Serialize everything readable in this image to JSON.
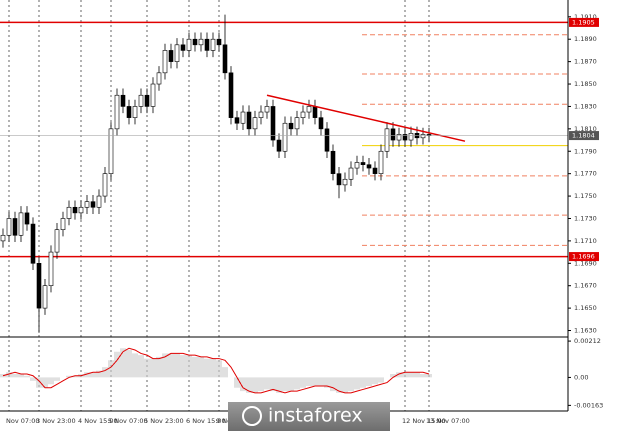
{
  "chart_data": {
    "type": "candlestick",
    "categories": [
      null,
      "Nov 07:00",
      null,
      null,
      null,
      null,
      "3 Nov 23:00",
      null,
      null,
      null,
      null,
      null,
      null,
      "4 Nov 15:00",
      null,
      null,
      null,
      null,
      "5 Nov 07:00",
      null,
      null,
      null,
      null,
      null,
      "5 Nov 23:00",
      null,
      null,
      null,
      null,
      null,
      null,
      "6 Nov 15:00",
      null,
      null,
      null,
      null,
      "9 Nov 07:00",
      null,
      null,
      null,
      null,
      null,
      null,
      null,
      null,
      null,
      null,
      null,
      null,
      null,
      null,
      null,
      null,
      null,
      null,
      null,
      null,
      null,
      null,
      null,
      null,
      null,
      null,
      null,
      null,
      null,
      null,
      "12 Nov 15:00",
      null,
      null,
      null,
      "13 Nov 07:00"
    ],
    "open": [
      1.171,
      1.1715,
      1.173,
      1.1715,
      1.1735,
      1.1725,
      1.169,
      1.165,
      1.167,
      1.17,
      1.172,
      1.173,
      1.174,
      1.1735,
      1.174,
      1.1745,
      1.174,
      1.175,
      1.177,
      1.181,
      1.184,
      1.183,
      1.182,
      1.183,
      1.184,
      1.183,
      1.185,
      1.186,
      1.188,
      1.187,
      1.1885,
      1.188,
      1.189,
      1.1885,
      1.189,
      1.188,
      1.189,
      1.1885,
      1.186,
      1.182,
      1.1815,
      1.1825,
      1.181,
      1.182,
      1.1825,
      1.183,
      1.18,
      1.179,
      1.1815,
      1.181,
      1.182,
      1.1825,
      1.183,
      1.182,
      1.181,
      1.179,
      1.177,
      1.176,
      1.1765,
      1.1775,
      1.178,
      1.1778,
      1.1775,
      1.177,
      1.179,
      1.181,
      1.18,
      1.1805,
      1.18,
      1.1806,
      1.1802,
      1.1805
    ],
    "high": [
      1.1721,
      1.1736,
      1.1736,
      1.1741,
      1.1741,
      1.1731,
      1.1696,
      1.1676,
      1.1706,
      1.1726,
      1.1736,
      1.1746,
      1.1746,
      1.1746,
      1.1751,
      1.1751,
      1.1756,
      1.1776,
      1.1816,
      1.1846,
      1.1846,
      1.1836,
      1.1836,
      1.1846,
      1.1846,
      1.1856,
      1.1866,
      1.1886,
      1.1886,
      1.1891,
      1.1891,
      1.1896,
      1.1896,
      1.1896,
      1.1896,
      1.1896,
      1.1896,
      1.1912,
      1.1866,
      1.1826,
      1.1831,
      1.1831,
      1.1826,
      1.1831,
      1.1836,
      1.1836,
      1.1806,
      1.1821,
      1.1821,
      1.1826,
      1.1831,
      1.1836,
      1.1836,
      1.1826,
      1.1816,
      1.1796,
      1.1776,
      1.1771,
      1.1781,
      1.1786,
      1.1786,
      1.1784,
      1.1781,
      1.1796,
      1.1816,
      1.1816,
      1.1811,
      1.1811,
      1.1812,
      1.1812,
      1.1811,
      1.1811
    ],
    "low": [
      1.1704,
      1.1709,
      1.1709,
      1.1709,
      1.1719,
      1.1684,
      1.1628,
      1.1644,
      1.1664,
      1.1694,
      1.1714,
      1.1724,
      1.1729,
      1.1729,
      1.1734,
      1.1734,
      1.1734,
      1.1744,
      1.1764,
      1.1804,
      1.1824,
      1.1814,
      1.1814,
      1.1824,
      1.1824,
      1.1824,
      1.1844,
      1.1854,
      1.1864,
      1.1864,
      1.1874,
      1.1874,
      1.1879,
      1.1879,
      1.1874,
      1.1874,
      1.1879,
      1.1854,
      1.1814,
      1.1809,
      1.1809,
      1.1804,
      1.1804,
      1.1814,
      1.1819,
      1.1794,
      1.1784,
      1.1784,
      1.1804,
      1.1804,
      1.1814,
      1.1819,
      1.1814,
      1.1804,
      1.1784,
      1.1764,
      1.1748,
      1.1754,
      1.1759,
      1.1769,
      1.1772,
      1.1769,
      1.1764,
      1.1764,
      1.1784,
      1.1794,
      1.1794,
      1.1794,
      1.1794,
      1.1796,
      1.1796,
      1.1798
    ],
    "close": [
      1.1715,
      1.173,
      1.1715,
      1.1735,
      1.1725,
      1.169,
      1.165,
      1.167,
      1.17,
      1.172,
      1.173,
      1.174,
      1.1735,
      1.174,
      1.1745,
      1.174,
      1.175,
      1.177,
      1.181,
      1.184,
      1.183,
      1.182,
      1.183,
      1.184,
      1.183,
      1.185,
      1.186,
      1.188,
      1.187,
      1.1885,
      1.188,
      1.189,
      1.1885,
      1.189,
      1.188,
      1.189,
      1.1885,
      1.186,
      1.182,
      1.1815,
      1.1825,
      1.181,
      1.182,
      1.1825,
      1.183,
      1.18,
      1.179,
      1.1815,
      1.181,
      1.182,
      1.1825,
      1.183,
      1.182,
      1.181,
      1.179,
      1.177,
      1.176,
      1.1765,
      1.1775,
      1.178,
      1.1778,
      1.1775,
      1.177,
      1.179,
      1.181,
      1.18,
      1.1805,
      1.18,
      1.1806,
      1.1802,
      1.1805,
      1.1804
    ],
    "ylim": [
      1.1626,
      1.1925
    ],
    "yticks": [
      {
        "value": 1.191,
        "label": "1.1910"
      },
      {
        "value": 1.189,
        "label": "1.1890"
      },
      {
        "value": 1.187,
        "label": "1.1870"
      },
      {
        "value": 1.185,
        "label": "1.1850"
      },
      {
        "value": 1.183,
        "label": "1.1830"
      },
      {
        "value": 1.181,
        "label": "1.1810"
      },
      {
        "value": 1.179,
        "label": "1.1790"
      },
      {
        "value": 1.177,
        "label": "1.1770"
      },
      {
        "value": 1.175,
        "label": "1.1750"
      },
      {
        "value": 1.173,
        "label": "1.1730"
      },
      {
        "value": 1.171,
        "label": "1.1710"
      },
      {
        "value": 1.169,
        "label": "1.1690"
      },
      {
        "value": 1.167,
        "label": "1.1670"
      },
      {
        "value": 1.165,
        "label": "1.1650"
      },
      {
        "value": 1.163,
        "label": "1.1630"
      }
    ],
    "levels": [
      {
        "value": 1.1905,
        "color": "#e00000"
      },
      {
        "value": 1.1696,
        "color": "#e00000"
      }
    ],
    "current_price": 1.1804,
    "trendline": {
      "x": [
        44,
        77
      ],
      "values": [
        1.184,
        1.1799
      ],
      "color": "#e00000"
    },
    "fib_levels": [
      1.1894,
      1.1859,
      1.1832,
      1.1795,
      1.1768,
      1.1733,
      1.1706
    ],
    "indicator": {
      "type": "histogram",
      "values": [
        0.0002,
        0.0003,
        0.0002,
        0.0002,
        0.0001,
        -0.0002,
        -0.0006,
        -0.0006,
        -0.0004,
        -0.0002,
        0.0,
        0.0001,
        0.0001,
        0.0002,
        0.0003,
        0.0003,
        0.0004,
        0.0006,
        0.001,
        0.0015,
        0.0017,
        0.0016,
        0.0014,
        0.0013,
        0.0011,
        0.0011,
        0.0012,
        0.0014,
        0.0014,
        0.0014,
        0.0013,
        0.0013,
        0.0012,
        0.0012,
        0.0011,
        0.0011,
        0.001,
        0.0006,
        0.0,
        -0.0006,
        -0.0008,
        -0.0009,
        -0.0009,
        -0.0008,
        -0.0007,
        -0.0008,
        -0.0009,
        -0.0008,
        -0.0008,
        -0.0007,
        -0.0006,
        -0.0005,
        -0.0005,
        -0.0005,
        -0.0006,
        -0.0008,
        -0.0009,
        -0.0009,
        -0.0008,
        -0.0007,
        -0.0006,
        -0.0005,
        -0.0004,
        -0.0003,
        0.0,
        0.0002,
        0.0003,
        0.0003,
        0.0003,
        0.0003,
        0.0002,
        0.0002
      ],
      "signal": [
        0.0001,
        0.0002,
        0.0003,
        0.0002,
        0.0002,
        0.0001,
        -0.0002,
        -0.0006,
        -0.0006,
        -0.0004,
        -0.0002,
        0.0,
        0.0001,
        0.0001,
        0.0002,
        0.0003,
        0.0003,
        0.0004,
        0.0006,
        0.001,
        0.0015,
        0.0017,
        0.0016,
        0.0014,
        0.0013,
        0.0011,
        0.0011,
        0.0012,
        0.0014,
        0.0014,
        0.0014,
        0.0013,
        0.0013,
        0.0012,
        0.0012,
        0.0011,
        0.0011,
        0.001,
        0.0006,
        0.0,
        -0.0006,
        -0.0008,
        -0.0009,
        -0.0009,
        -0.0008,
        -0.0007,
        -0.0008,
        -0.0009,
        -0.0008,
        -0.0008,
        -0.0007,
        -0.0006,
        -0.0005,
        -0.0005,
        -0.0005,
        -0.0006,
        -0.0008,
        -0.0009,
        -0.0009,
        -0.0008,
        -0.0007,
        -0.0006,
        -0.0005,
        -0.0004,
        -0.0003,
        0.0,
        0.0002,
        0.0003,
        0.0003,
        0.0003,
        0.0003,
        0.0002
      ],
      "signal_color": "#e00000",
      "ylim": [
        -0.0019,
        0.0023
      ],
      "yticks": [
        0.00212,
        {
          "value": 0,
          "label": "0.00"
        },
        -0.00163
      ]
    },
    "watermark": "instaforex"
  }
}
